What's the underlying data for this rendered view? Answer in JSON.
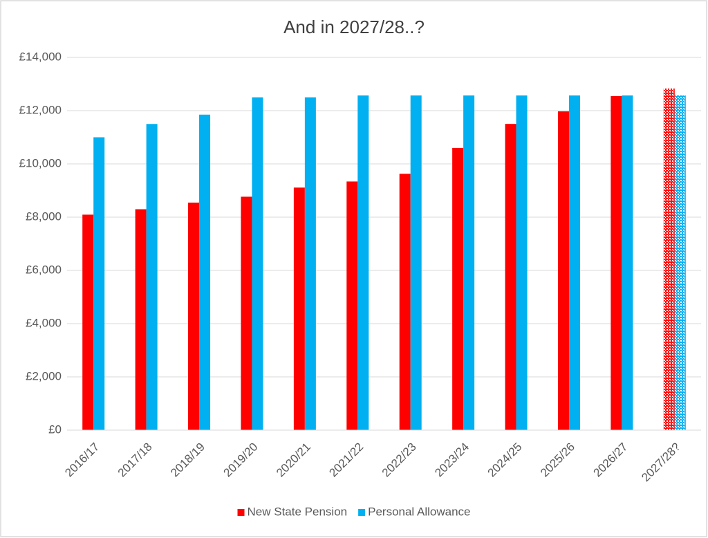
{
  "chart_data": {
    "type": "bar",
    "title": "And in 2027/28..?",
    "categories": [
      "2016/17",
      "2017/18",
      "2018/19",
      "2019/20",
      "2020/21",
      "2021/22",
      "2022/23",
      "2023/24",
      "2024/25",
      "2025/26",
      "2026/27",
      "2027/28?"
    ],
    "series": [
      {
        "name": "New State Pension",
        "color": "#ff0000",
        "values": [
          8093,
          8297,
          8546,
          8767,
          9110,
          9339,
          9628,
          10600,
          11502,
          11973,
          12548,
          12830
        ]
      },
      {
        "name": "Personal Allowance",
        "color": "#00b0f0",
        "values": [
          11000,
          11500,
          11850,
          12500,
          12500,
          12570,
          12570,
          12570,
          12570,
          12570,
          12570,
          12570
        ]
      }
    ],
    "ylim": [
      0,
      14000
    ],
    "yticks": [
      {
        "value": 0,
        "label": "£0"
      },
      {
        "value": 2000,
        "label": "£2,000"
      },
      {
        "value": 4000,
        "label": "£4,000"
      },
      {
        "value": 6000,
        "label": "£6,000"
      },
      {
        "value": 8000,
        "label": "£8,000"
      },
      {
        "value": 10000,
        "label": "£10,000"
      },
      {
        "value": 12000,
        "label": "£12,000"
      },
      {
        "value": 14000,
        "label": "£14,000"
      }
    ],
    "grid": true,
    "legend": "bottom",
    "pattern_from_index": 11
  }
}
